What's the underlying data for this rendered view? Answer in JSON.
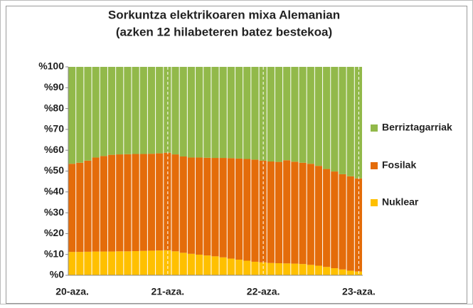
{
  "chart_data": {
    "type": "stacked_bar",
    "title": "Sorkuntza elektrikoaren mixa Alemanian",
    "subtitle": "(azken 12 hilabeteren batez bestekoa)",
    "categories": [
      "20-aza.",
      null,
      null,
      null,
      null,
      null,
      null,
      null,
      null,
      null,
      null,
      null,
      "21-aza.",
      null,
      null,
      null,
      null,
      null,
      null,
      null,
      null,
      null,
      null,
      null,
      "22-aza.",
      null,
      null,
      null,
      null,
      null,
      null,
      null,
      null,
      null,
      null,
      null,
      "23-aza."
    ],
    "series": [
      {
        "name": "Nuklear",
        "color": "#ffc000",
        "values": [
          11.2,
          11.2,
          11.3,
          11.4,
          11.4,
          11.4,
          11.5,
          11.5,
          11.6,
          11.7,
          11.8,
          11.9,
          12.0,
          11.5,
          10.8,
          10.3,
          9.9,
          9.5,
          9.1,
          8.6,
          8.0,
          7.5,
          7.0,
          6.5,
          6.2,
          5.9,
          5.8,
          5.7,
          5.6,
          5.4,
          5.0,
          4.6,
          4.0,
          3.4,
          2.8,
          2.2,
          1.8
        ]
      },
      {
        "name": "Fosilak",
        "color": "#e46c0a",
        "values": [
          42.3,
          42.8,
          43.7,
          45.1,
          45.8,
          46.4,
          46.5,
          46.6,
          46.6,
          46.5,
          46.5,
          46.6,
          46.8,
          46.5,
          46.2,
          46.2,
          46.6,
          46.9,
          47.2,
          47.7,
          48.2,
          48.5,
          48.8,
          49.0,
          48.8,
          48.7,
          48.6,
          49.5,
          48.9,
          48.6,
          48.5,
          47.9,
          47.0,
          46.4,
          45.7,
          45.3,
          44.7
        ]
      },
      {
        "name": "Berriztagarriak",
        "color": "#92b94a",
        "values": [
          46.5,
          46,
          45,
          43.5,
          42.8,
          42.2,
          42,
          41.9,
          41.8,
          41.8,
          41.7,
          41.5,
          41.2,
          42,
          43,
          43.5,
          43.5,
          43.6,
          43.7,
          43.7,
          43.8,
          44,
          44.2,
          44.5,
          45,
          45.4,
          45.6,
          44.8,
          45.5,
          46,
          46.5,
          47.5,
          49,
          50.2,
          51.5,
          52.5,
          53.5
        ]
      }
    ],
    "ylim": [
      0,
      100
    ],
    "yticks": [
      {
        "value": 0,
        "label": "%0"
      },
      {
        "value": 10,
        "label": "%10"
      },
      {
        "value": 20,
        "label": "%20"
      },
      {
        "value": 30,
        "label": "%30"
      },
      {
        "value": 40,
        "label": "%40"
      },
      {
        "value": 50,
        "label": "%50"
      },
      {
        "value": 60,
        "label": "%60"
      },
      {
        "value": 70,
        "label": "%70"
      },
      {
        "value": 80,
        "label": "%80"
      },
      {
        "value": 90,
        "label": "%90"
      },
      {
        "value": 100,
        "label": "%100"
      }
    ],
    "legend": "right"
  }
}
